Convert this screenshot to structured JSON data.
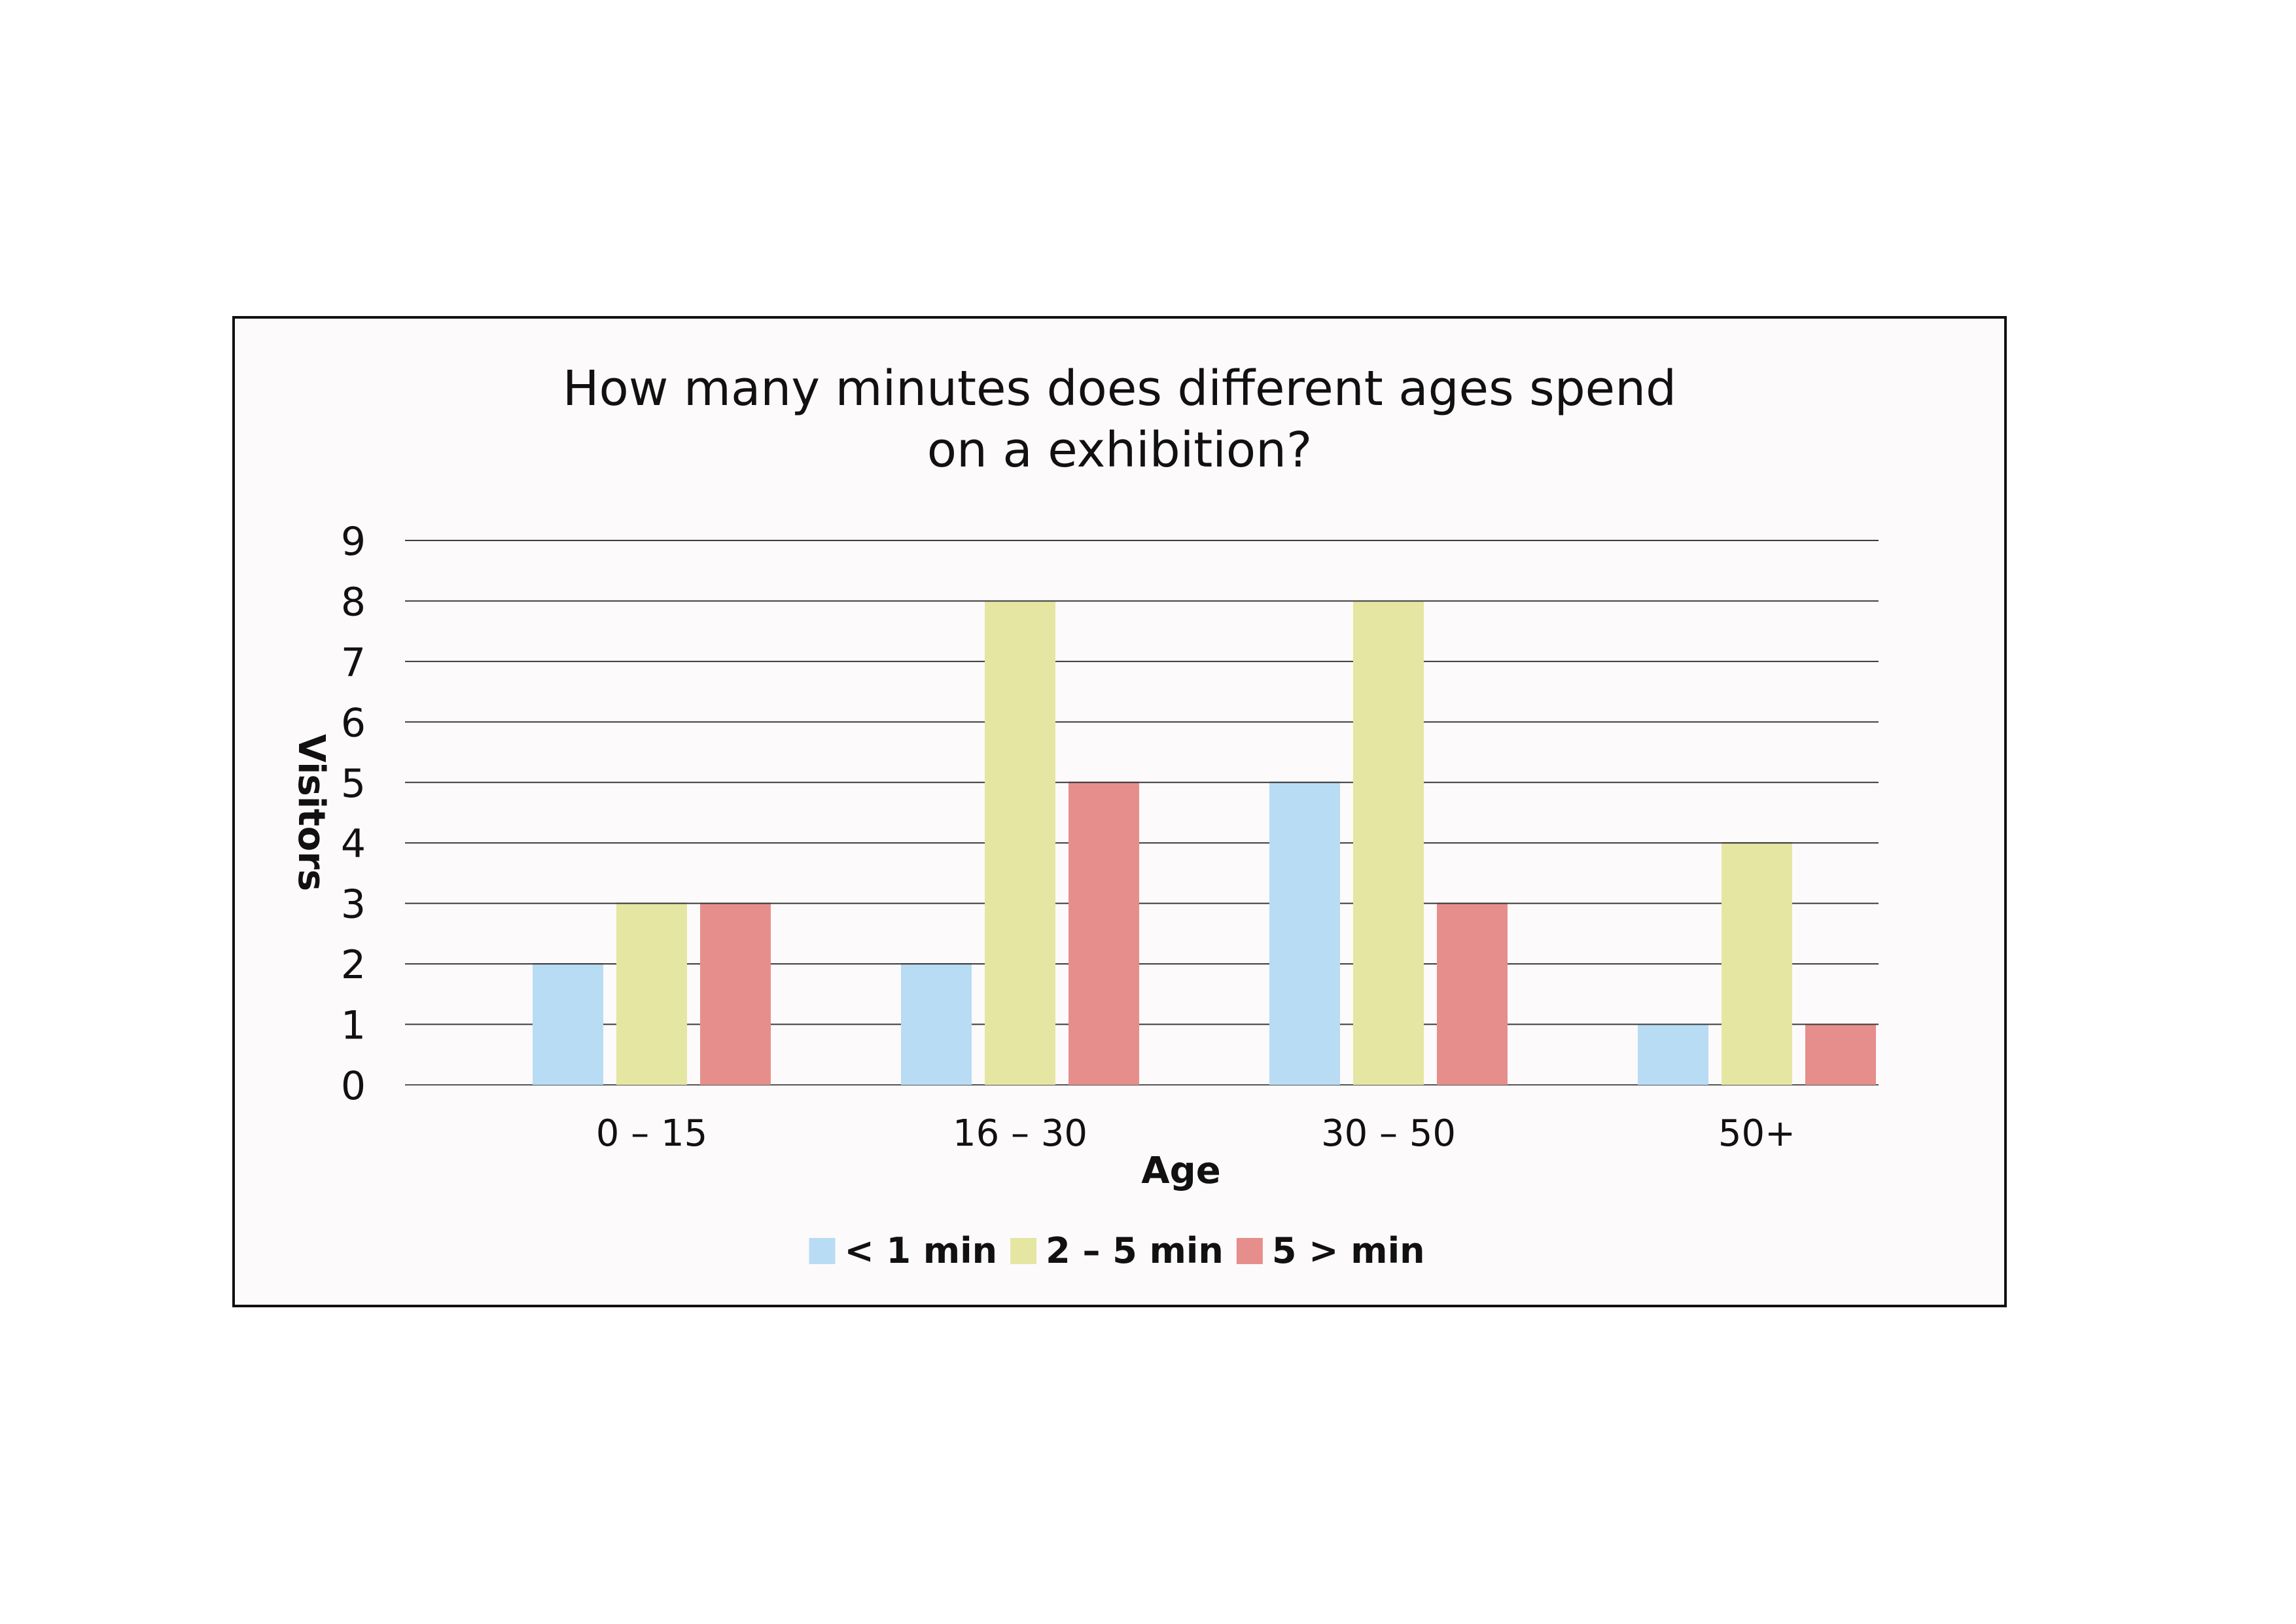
{
  "chart_data": {
    "type": "bar",
    "title_lines": [
      "How many minutes does different ages spend",
      "on a exhibition?"
    ],
    "xlabel": "Age",
    "ylabel": "Visitors",
    "categories": [
      "0 – 15",
      "16 – 30",
      "30 – 50",
      "50+"
    ],
    "series": [
      {
        "name": "< 1 min",
        "color": "#b8dcf4",
        "values": [
          2,
          2,
          5,
          1
        ]
      },
      {
        "name": "2 – 5 min",
        "color": "#e5e6a2",
        "values": [
          3,
          8,
          8,
          4
        ]
      },
      {
        "name": "5 > min",
        "color": "#e68e8b",
        "values": [
          3,
          5,
          3,
          1
        ]
      }
    ],
    "ylim": [
      0,
      9
    ],
    "yticks": [
      0,
      1,
      2,
      3,
      4,
      5,
      6,
      7,
      8,
      9
    ],
    "grid": true,
    "legend_position": "bottom"
  }
}
